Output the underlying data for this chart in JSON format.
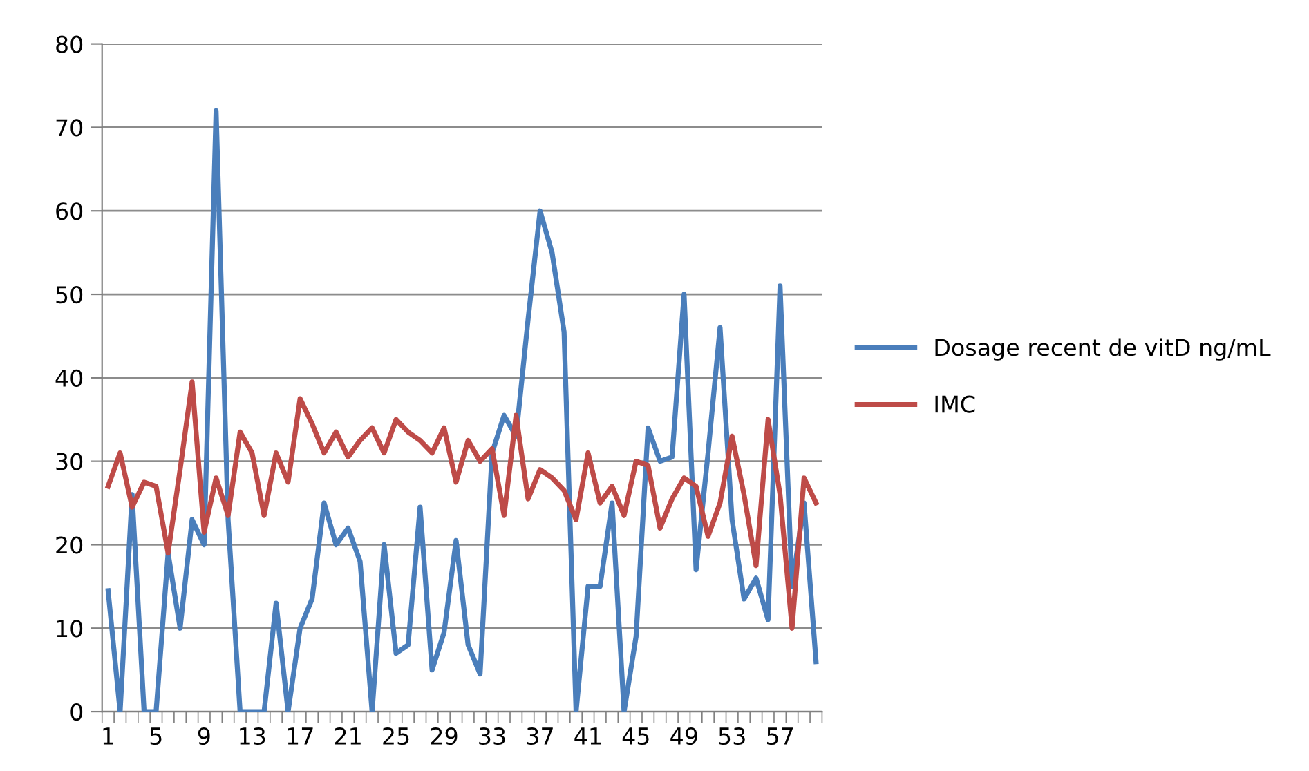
{
  "chart_data": {
    "type": "line",
    "categories": [
      "1",
      null,
      null,
      null,
      "5",
      null,
      null,
      null,
      "9",
      null,
      null,
      null,
      "13",
      null,
      null,
      null,
      "17",
      null,
      null,
      null,
      "21",
      null,
      null,
      null,
      "25",
      null,
      null,
      null,
      "29",
      null,
      null,
      null,
      "33",
      null,
      null,
      null,
      "37",
      null,
      null,
      null,
      "41",
      null,
      null,
      null,
      "45",
      null,
      null,
      null,
      "49",
      null,
      null,
      null,
      "53",
      null,
      null,
      null,
      "57",
      null,
      null,
      null
    ],
    "series": [
      {
        "name": "Dosage recent de vitD ng/mL",
        "color": "#4a7ebb",
        "values": [
          14.5,
          0,
          26,
          0,
          0,
          19,
          10,
          23,
          20,
          72,
          23,
          0,
          0,
          0,
          13,
          0,
          10,
          13.5,
          25,
          20,
          22,
          18,
          0,
          20,
          7,
          8,
          24.5,
          5,
          9.5,
          20.5,
          8,
          4.5,
          31,
          35.5,
          33,
          47,
          60,
          55,
          45.5,
          0,
          15,
          15,
          25,
          0,
          9,
          34,
          30,
          30.5,
          50,
          17,
          31,
          46,
          23,
          13.5,
          16,
          11,
          51,
          15,
          25,
          6
        ]
      },
      {
        "name": "IMC",
        "color": "#be4b48",
        "values": [
          27,
          31,
          24.5,
          27.5,
          27,
          19,
          29,
          39.5,
          21.5,
          28,
          23.5,
          33.5,
          31,
          23.5,
          31,
          27.5,
          37.5,
          34.5,
          31,
          33.5,
          30.5,
          32.5,
          34,
          31,
          35,
          33.5,
          32.5,
          31,
          34,
          27.5,
          32.5,
          30,
          31.5,
          23.5,
          35.5,
          25.5,
          29,
          28,
          26.5,
          23,
          31,
          25,
          27,
          23.5,
          30,
          29.5,
          22,
          25.5,
          28,
          27,
          21,
          25,
          33,
          26,
          17.5,
          35,
          26,
          10,
          28,
          25
        ]
      }
    ],
    "ylim": [
      0,
      80
    ],
    "yticks": [
      0,
      10,
      20,
      30,
      40,
      50,
      60,
      70,
      80
    ],
    "grid": "y",
    "legend": "right",
    "marker": "none",
    "line_style": "solid"
  }
}
